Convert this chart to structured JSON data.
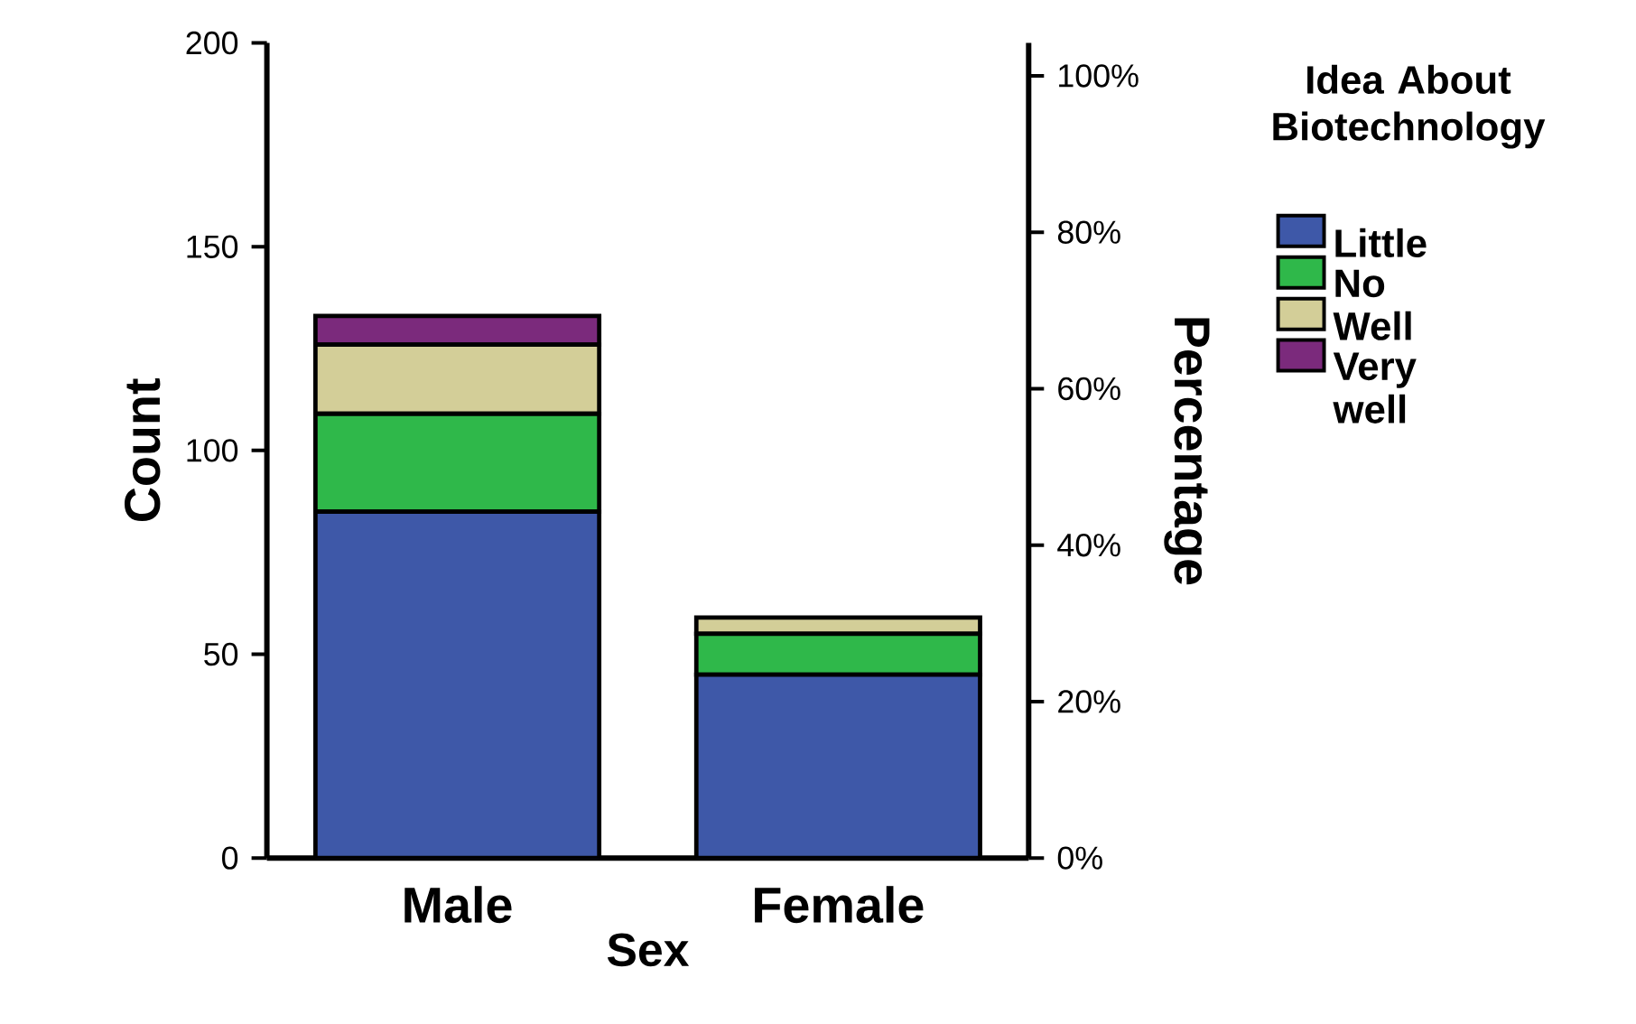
{
  "chart_data": {
    "type": "bar",
    "stacked": true,
    "xlabel": "Sex",
    "ylabel": "Count",
    "y2label": "Percentage",
    "legend_title": "Idea About Biotechnology",
    "categories": [
      "Male",
      "Female"
    ],
    "series": [
      {
        "name": "Little",
        "color": "#3e58a8",
        "values": [
          85,
          45
        ]
      },
      {
        "name": "No",
        "color": "#2fb84a",
        "values": [
          24,
          10
        ]
      },
      {
        "name": "Well",
        "color": "#d3ce98",
        "values": [
          17,
          4
        ]
      },
      {
        "name": "Very well",
        "color": "#7b2a7c",
        "values": [
          7,
          0
        ]
      }
    ],
    "ylim": [
      0,
      200
    ],
    "yticks": [
      0,
      50,
      100,
      150,
      200
    ],
    "y2lim": [
      0,
      104.2
    ],
    "y2ticks": [
      {
        "value": 0,
        "label": "0%"
      },
      {
        "value": 20,
        "label": "20%"
      },
      {
        "value": 40,
        "label": "40%"
      },
      {
        "value": 60,
        "label": "60%"
      },
      {
        "value": 80,
        "label": "80%"
      },
      {
        "value": 100,
        "label": "100%"
      }
    ],
    "grid": false,
    "legend": "right"
  }
}
